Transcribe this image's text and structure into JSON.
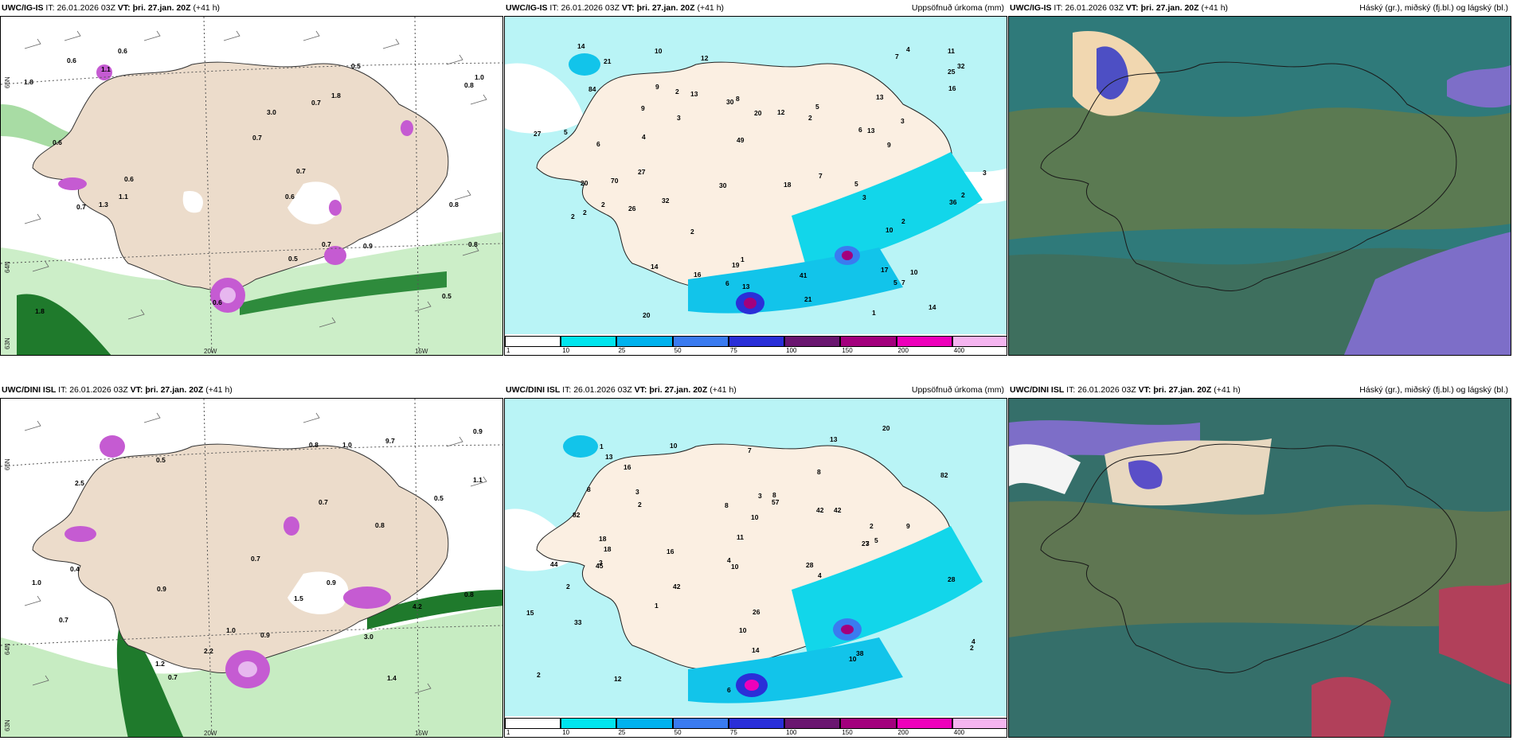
{
  "panels": [
    {
      "id": "p1",
      "model": "UWC/IG-IS",
      "it_label": "IT:",
      "it": "26.01.2026 03Z",
      "vt_label": "VT:",
      "vt": "þri. 27.jan. 20Z",
      "lead": "(+41 h)",
      "right_label": "",
      "lat_labels": [
        "66N",
        "64N",
        "63N"
      ],
      "lon_labels": [
        "20W",
        "15W"
      ],
      "values": [
        "0.6",
        "1.8",
        "0.8",
        "0.6",
        "0.5",
        "0.7",
        "0.6",
        "0.7",
        "1.8",
        "3.0",
        "1.8",
        "1.3",
        "0.6",
        "0.6",
        "1.0",
        "0.5",
        "0.8",
        "0.9",
        "0.8",
        "0.7",
        "0.7",
        "0.7",
        "0.6",
        "0.5",
        "1.1",
        "1.1"
      ]
    },
    {
      "id": "p2",
      "model": "UWC/IG-IS",
      "it_label": "IT:",
      "it": "26.01.2026 03Z",
      "vt_label": "VT:",
      "vt": "þri. 27.jan. 20Z",
      "lead": "(+41 h)",
      "right_label": "Uppsöfnuð úrkoma (mm)",
      "values": [
        "2",
        "19",
        "25",
        "32",
        "6",
        "3",
        "2",
        "3",
        "2",
        "1",
        "4",
        "2",
        "2",
        "3",
        "10",
        "5",
        "7",
        "8",
        "9",
        "2",
        "14",
        "13",
        "12",
        "6",
        "9",
        "5",
        "7",
        "13",
        "10",
        "14",
        "21",
        "16",
        "30",
        "41",
        "10",
        "14",
        "12",
        "9",
        "36",
        "32",
        "30",
        "20",
        "20",
        "16",
        "13",
        "17",
        "84",
        "26",
        "49",
        "27",
        "27",
        "70",
        "18",
        "21",
        "20",
        "13",
        "11",
        "2",
        "5",
        "7",
        "3",
        "4",
        "6",
        "2",
        "1",
        "5"
      ],
      "colorbar": {
        "ticks": [
          "1",
          "10",
          "25",
          "50",
          "75",
          "100",
          "150",
          "200",
          "400"
        ],
        "colors": [
          "#ffffff",
          "#00e5ee",
          "#00b2ee",
          "#3a7bf0",
          "#2a2fd8",
          "#6a1670",
          "#a3007d",
          "#ee00bb",
          "#f5b5f0"
        ]
      }
    },
    {
      "id": "p3",
      "model": "UWC/IG-IS",
      "it_label": "IT:",
      "it": "26.01.2026 03Z",
      "vt_label": "VT:",
      "vt": "þri. 27.jan. 20Z",
      "lead": "(+41 h)",
      "right_label": "Háský (gr.), miðský (fj.bl.) og lágský (bl.)"
    },
    {
      "id": "p4",
      "model": "UWC/DINI ISL",
      "it_label": "IT:",
      "it": "26.01.2026 03Z",
      "vt_label": "VT:",
      "vt": "þri. 27.jan. 20Z",
      "lead": "(+41 h)",
      "right_label": "",
      "lat_labels": [
        "66N",
        "64N",
        "63N"
      ],
      "lon_labels": [
        "20W",
        "15W"
      ],
      "values": [
        "9.7",
        "0.7",
        "0.5",
        "1.0",
        "0.5",
        "0.9",
        "1.4",
        "0.9",
        "0.7",
        "1.1",
        "0.8",
        "1.0",
        "0.8",
        "0.9",
        "0.8",
        "3.0",
        "1.5",
        "2.2",
        "4.2",
        "2.5",
        "0.4",
        "1.0",
        "0.9",
        "0.7",
        "0.7",
        "1.2"
      ]
    },
    {
      "id": "p5",
      "model": "UWC/DINI ISL",
      "it_label": "IT:",
      "it": "26.01.2026 03Z",
      "vt_label": "VT:",
      "vt": "þri. 27.jan. 20Z",
      "lead": "(+41 h)",
      "right_label": "Uppsöfnuð úrkoma (mm)",
      "values": [
        "4",
        "38",
        "10",
        "42",
        "42",
        "13",
        "2",
        "2",
        "3",
        "2",
        "1",
        "4",
        "2",
        "2",
        "3",
        "10",
        "7",
        "8",
        "10",
        "5",
        "8",
        "13",
        "14",
        "10",
        "16",
        "18",
        "11",
        "20",
        "28",
        "15",
        "26",
        "42",
        "45",
        "57",
        "82",
        "16",
        "12",
        "18",
        "44",
        "33",
        "27",
        "82",
        "28",
        "10",
        "8",
        "6",
        "3",
        "1",
        "4",
        "3",
        "9",
        "8"
      ],
      "colorbar": {
        "ticks": [
          "1",
          "10",
          "25",
          "50",
          "75",
          "100",
          "150",
          "200",
          "400"
        ],
        "colors": [
          "#ffffff",
          "#00e5ee",
          "#00b2ee",
          "#3a7bf0",
          "#2a2fd8",
          "#6a1670",
          "#a3007d",
          "#ee00bb",
          "#f5b5f0"
        ]
      }
    },
    {
      "id": "p6",
      "model": "UWC/DINI ISL",
      "it_label": "IT:",
      "it": "26.01.2026 03Z",
      "vt_label": "VT:",
      "vt": "þri. 27.jan. 20Z",
      "lead": "(+41 h)",
      "right_label": "Háský (gr.), miðský (fj.bl.) og lágský (bl.)"
    }
  ]
}
